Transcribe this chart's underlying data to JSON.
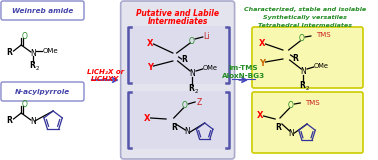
{
  "bg_color": "#ffffff",
  "arrow_color": "#4444bb",
  "title1": "Weinreb amide",
  "title2": "N-acylpyrrole",
  "mid_title_line1": "Putative and Labile",
  "mid_title_line2": "Intermediates",
  "right_title_line1": "Characterized, stable and isolable",
  "right_title_line2": "Synthetically versatiles",
  "right_title_line3": "Tetrahedral Intermediates",
  "reagent_line1": "LiCH₂X or",
  "reagent_line2": "LiCHXY",
  "reagent2_line1": "Im-TMS",
  "reagent2_line2": "AloxN-BG3"
}
